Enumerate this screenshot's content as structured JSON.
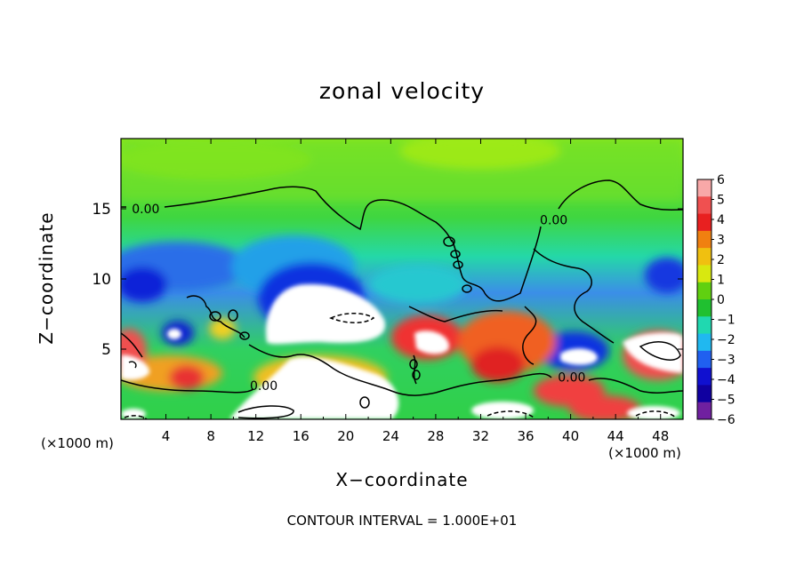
{
  "chart_data": {
    "type": "heatmap",
    "title": "zonal velocity",
    "xlabel": "X−coordinate",
    "ylabel": "Z−coordinate",
    "x_unit_label": "(×1000 m)",
    "x_range": [
      0,
      50
    ],
    "z_range": [
      0,
      20
    ],
    "x_ticks": [
      4,
      8,
      12,
      16,
      20,
      24,
      28,
      32,
      36,
      40,
      44,
      48
    ],
    "z_ticks": [
      5,
      10,
      15
    ],
    "colorbar": {
      "range": [
        -6,
        6
      ],
      "ticks": [
        "6",
        "5",
        "4",
        "3",
        "2",
        "1",
        "0",
        "−1",
        "−2",
        "−3",
        "−4",
        "−5",
        "−6"
      ]
    },
    "contour_labels": [
      {
        "text": "0.00",
        "x": 2.2,
        "z": 15.0
      },
      {
        "text": "0.00",
        "x": 12.7,
        "z": 2.4
      },
      {
        "text": "0.00",
        "x": 38.5,
        "z": 14.2
      },
      {
        "text": "0.00",
        "x": 40.1,
        "z": 3.0
      }
    ],
    "note": "CONTOUR INTERVAL = 1.000E+01"
  }
}
